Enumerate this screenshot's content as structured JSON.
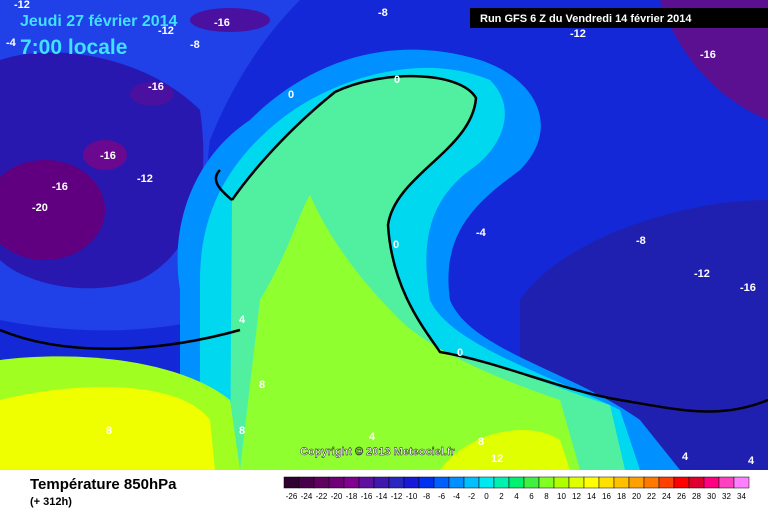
{
  "header": {
    "date": "Jeudi 27 février 2014",
    "time": "7:00 locale",
    "run": "Run GFS 6 Z du Vendredi 14 février 2014"
  },
  "map": {
    "contour_labels": [
      -12,
      -4,
      -12,
      -16,
      -8,
      -8,
      -12,
      -16,
      -16,
      0,
      0,
      -16,
      -12,
      -16,
      -20,
      -4,
      -8,
      0,
      -12,
      -16,
      4,
      0,
      8,
      8,
      8,
      4,
      8,
      12,
      4,
      4
    ],
    "copyright": "Copyright © 2013 Meteociel.fr"
  },
  "footer": {
    "title": "Température 850hPa",
    "subtitle": "(+ 312h)"
  },
  "scale": {
    "labels": [
      -26,
      -24,
      -22,
      -20,
      -18,
      -16,
      -14,
      -12,
      -10,
      -8,
      -6,
      -4,
      -2,
      0,
      2,
      4,
      6,
      8,
      10,
      12,
      14,
      16,
      18,
      20,
      22,
      24,
      26,
      28,
      30,
      32,
      34
    ],
    "colors": [
      "#300030",
      "#48004a",
      "#600060",
      "#700078",
      "#800090",
      "#6010a0",
      "#4018b0",
      "#2828c0",
      "#1818d8",
      "#0030f0",
      "#0060ff",
      "#0090ff",
      "#00c0ff",
      "#00e8f0",
      "#00f0b0",
      "#00f070",
      "#40f040",
      "#80ff20",
      "#b0ff00",
      "#e0ff00",
      "#ffff00",
      "#ffe000",
      "#ffc000",
      "#ffa000",
      "#ff7800",
      "#ff4000",
      "#ff0000",
      "#e00030",
      "#ff0080",
      "#ff40c0",
      "#ff80ff"
    ]
  }
}
